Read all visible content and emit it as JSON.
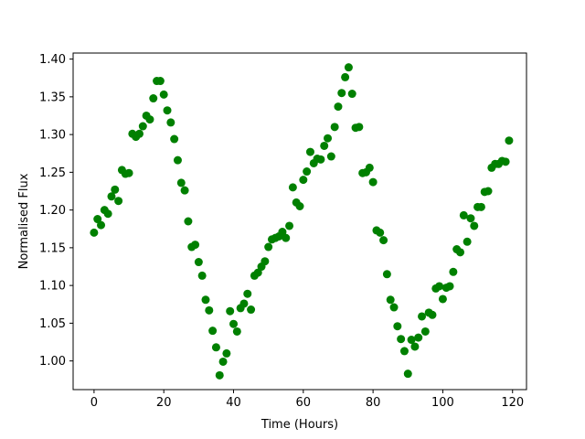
{
  "chart_data": {
    "type": "scatter",
    "xlabel": "Time (Hours)",
    "ylabel": "Normalised Flux",
    "xlim": [
      -6,
      124
    ],
    "ylim": [
      0.962,
      1.408
    ],
    "xticks": [
      0,
      20,
      40,
      60,
      80,
      100,
      120
    ],
    "yticks": [
      1.0,
      1.05,
      1.1,
      1.15,
      1.2,
      1.25,
      1.3,
      1.35,
      1.4
    ],
    "xtick_labels": [
      "0",
      "20",
      "40",
      "60",
      "80",
      "100",
      "120"
    ],
    "ytick_labels": [
      "1.00",
      "1.05",
      "1.10",
      "1.15",
      "1.20",
      "1.25",
      "1.30",
      "1.35",
      "1.40"
    ],
    "grid": false,
    "marker_color": "#008000",
    "series": [
      {
        "points": [
          [
            0,
            1.17
          ],
          [
            1,
            1.188
          ],
          [
            2,
            1.18
          ],
          [
            3,
            1.2
          ],
          [
            4,
            1.195
          ],
          [
            5,
            1.218
          ],
          [
            6,
            1.227
          ],
          [
            7,
            1.212
          ],
          [
            8,
            1.253
          ],
          [
            9,
            1.248
          ],
          [
            10,
            1.249
          ],
          [
            11,
            1.301
          ],
          [
            12,
            1.297
          ],
          [
            13,
            1.301
          ],
          [
            14,
            1.311
          ],
          [
            15,
            1.325
          ],
          [
            16,
            1.32
          ],
          [
            17,
            1.348
          ],
          [
            18,
            1.371
          ],
          [
            19,
            1.371
          ],
          [
            20,
            1.353
          ],
          [
            21,
            1.332
          ],
          [
            22,
            1.316
          ],
          [
            23,
            1.294
          ],
          [
            24,
            1.266
          ],
          [
            25,
            1.236
          ],
          [
            26,
            1.226
          ],
          [
            27,
            1.185
          ],
          [
            28,
            1.151
          ],
          [
            29,
            1.154
          ],
          [
            30,
            1.131
          ],
          [
            31,
            1.113
          ],
          [
            32,
            1.081
          ],
          [
            33,
            1.067
          ],
          [
            34,
            1.04
          ],
          [
            35,
            1.018
          ],
          [
            36,
            0.981
          ],
          [
            37,
            0.999
          ],
          [
            38,
            1.01
          ],
          [
            39,
            1.066
          ],
          [
            40,
            1.049
          ],
          [
            41,
            1.039
          ],
          [
            42,
            1.07
          ],
          [
            43,
            1.076
          ],
          [
            44,
            1.089
          ],
          [
            45,
            1.068
          ],
          [
            46,
            1.113
          ],
          [
            47,
            1.117
          ],
          [
            48,
            1.125
          ],
          [
            49,
            1.132
          ],
          [
            50,
            1.151
          ],
          [
            51,
            1.161
          ],
          [
            52,
            1.163
          ],
          [
            53,
            1.165
          ],
          [
            54,
            1.171
          ],
          [
            55,
            1.163
          ],
          [
            56,
            1.179
          ],
          [
            57,
            1.23
          ],
          [
            58,
            1.21
          ],
          [
            59,
            1.205
          ],
          [
            60,
            1.24
          ],
          [
            61,
            1.251
          ],
          [
            62,
            1.277
          ],
          [
            63,
            1.262
          ],
          [
            64,
            1.268
          ],
          [
            65,
            1.267
          ],
          [
            66,
            1.285
          ],
          [
            67,
            1.295
          ],
          [
            68,
            1.271
          ],
          [
            69,
            1.31
          ],
          [
            70,
            1.337
          ],
          [
            71,
            1.355
          ],
          [
            72,
            1.376
          ],
          [
            73,
            1.389
          ],
          [
            74,
            1.354
          ],
          [
            75,
            1.309
          ],
          [
            76,
            1.31
          ],
          [
            77,
            1.249
          ],
          [
            78,
            1.25
          ],
          [
            79,
            1.256
          ],
          [
            80,
            1.237
          ],
          [
            81,
            1.173
          ],
          [
            82,
            1.17
          ],
          [
            83,
            1.16
          ],
          [
            84,
            1.115
          ],
          [
            85,
            1.081
          ],
          [
            86,
            1.071
          ],
          [
            87,
            1.046
          ],
          [
            88,
            1.029
          ],
          [
            89,
            1.013
          ],
          [
            90,
            0.983
          ],
          [
            91,
            1.028
          ],
          [
            92,
            1.019
          ],
          [
            93,
            1.031
          ],
          [
            94,
            1.059
          ],
          [
            95,
            1.039
          ],
          [
            96,
            1.064
          ],
          [
            97,
            1.061
          ],
          [
            98,
            1.096
          ],
          [
            99,
            1.099
          ],
          [
            100,
            1.082
          ],
          [
            101,
            1.097
          ],
          [
            102,
            1.099
          ],
          [
            103,
            1.118
          ],
          [
            104,
            1.148
          ],
          [
            105,
            1.144
          ],
          [
            106,
            1.193
          ],
          [
            107,
            1.158
          ],
          [
            108,
            1.189
          ],
          [
            109,
            1.179
          ],
          [
            110,
            1.204
          ],
          [
            111,
            1.204
          ],
          [
            112,
            1.224
          ],
          [
            113,
            1.225
          ],
          [
            114,
            1.256
          ],
          [
            115,
            1.261
          ],
          [
            116,
            1.261
          ],
          [
            117,
            1.265
          ],
          [
            118,
            1.264
          ],
          [
            119,
            1.292
          ]
        ]
      }
    ]
  }
}
